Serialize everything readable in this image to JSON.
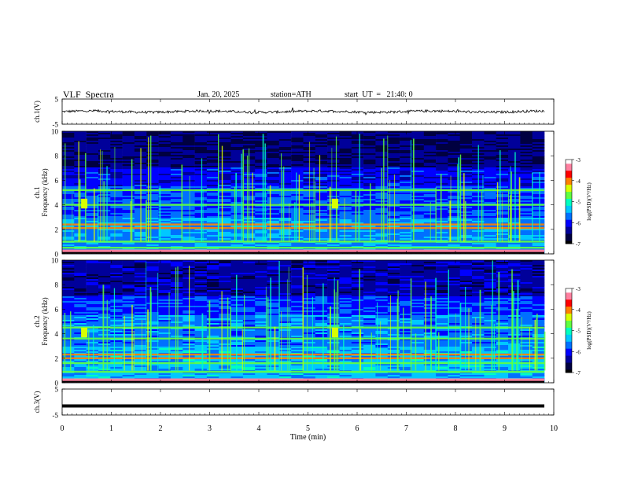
{
  "header": {
    "title": "VLF  Spectra",
    "date": "Jan. 20, 2025",
    "station": "station=ATH",
    "start": "start  UT  =   21:40: 0"
  },
  "colors": {
    "trace": "#000000",
    "axis": "#000000",
    "colormap": [
      "#000000",
      "#000040",
      "#00009a",
      "#0000ff",
      "#0070ff",
      "#00c8ff",
      "#00ffc0",
      "#60ff40",
      "#d8ff00",
      "#ff8000",
      "#ff0000",
      "#ff80a0",
      "#ffffff"
    ]
  },
  "chart_data": [
    {
      "type": "line",
      "name": "ch1-waveform",
      "ylabel": "ch.1(V)",
      "ylim": [
        -5,
        5
      ],
      "yticks": [
        "5",
        "-5"
      ],
      "xlim": [
        0,
        10
      ],
      "trace_mean": 0,
      "trace_amplitude_approx": 0.7
    },
    {
      "type": "heatmap",
      "name": "ch1-spectrogram",
      "ylabel": "ch.1\nFrequency  (kHz)",
      "ylim": [
        0,
        10
      ],
      "yticks": [
        "0",
        "2",
        "4",
        "6",
        "8",
        "10"
      ],
      "xlim": [
        0,
        10
      ],
      "bands_khz": [
        2.1,
        2.4,
        1.0,
        0.5,
        4.0,
        5.2
      ],
      "bursts_min": [
        0.45,
        5.55
      ],
      "colorbar": {
        "label": "log(PSD)(V²/Hz)",
        "ticks": [
          "-3",
          "-4",
          "-5",
          "-6",
          "-7"
        ],
        "range": [
          -7,
          -3
        ]
      }
    },
    {
      "type": "heatmap",
      "name": "ch2-spectrogram",
      "ylabel": "ch.2\nFrequency  (kHz)",
      "ylim": [
        0,
        10
      ],
      "yticks": [
        "0",
        "2",
        "4",
        "6",
        "8",
        "10"
      ],
      "xlim": [
        0,
        10
      ],
      "bands_khz": [
        2.0,
        2.3,
        1.6,
        4.5,
        3.6,
        0.9
      ],
      "bursts_min": [
        0.45,
        5.55
      ],
      "colorbar": {
        "label": "log(PSD)(V²/Hz)",
        "ticks": [
          "-3",
          "-4",
          "-5",
          "-6",
          "-7"
        ],
        "range": [
          -7,
          -3
        ]
      }
    },
    {
      "type": "line",
      "name": "ch3-waveform",
      "ylabel": "ch.3(V)",
      "ylim": [
        -5,
        5
      ],
      "yticks": [
        "5",
        "-5"
      ],
      "xlim": [
        0,
        10
      ],
      "trace_mean": -1.5
    }
  ],
  "xaxis": {
    "label": "Time  (min)",
    "ticks": [
      "0",
      "1",
      "2",
      "3",
      "4",
      "5",
      "6",
      "7",
      "8",
      "9",
      "10"
    ]
  }
}
